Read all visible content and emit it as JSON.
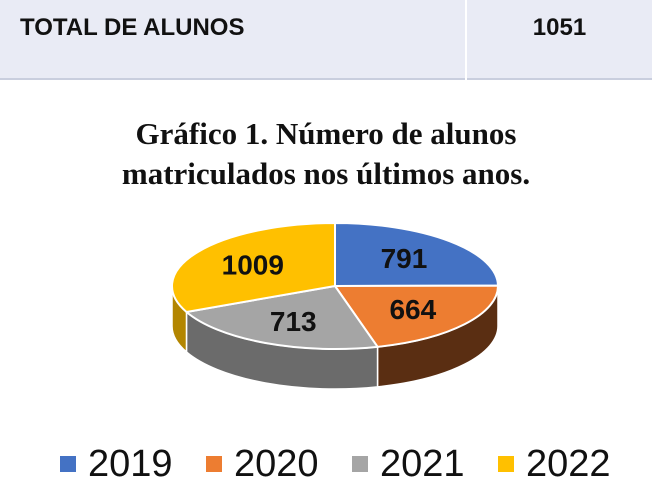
{
  "table": {
    "label": "TOTAL DE ALUNOS",
    "value": "1051"
  },
  "chart_data": {
    "type": "pie",
    "style": "3d-pie",
    "title": "Gráfico 1. Número de alunos matriculados nos últimos anos.",
    "title_lines": [
      "Gráfico 1. Número de alunos",
      "matriculados nos últimos anos."
    ],
    "categories": [
      "2019",
      "2020",
      "2021",
      "2022"
    ],
    "values": [
      791,
      664,
      713,
      1009
    ],
    "data_labels": [
      "791",
      "664",
      "713",
      "1009"
    ],
    "colors": [
      "#4472c4",
      "#ed7d31",
      "#a5a5a5",
      "#ffc000"
    ],
    "side_colors": [
      "#2f528f",
      "#5a2e12",
      "#6b6b6b",
      "#b38600"
    ],
    "legend_position": "bottom"
  }
}
